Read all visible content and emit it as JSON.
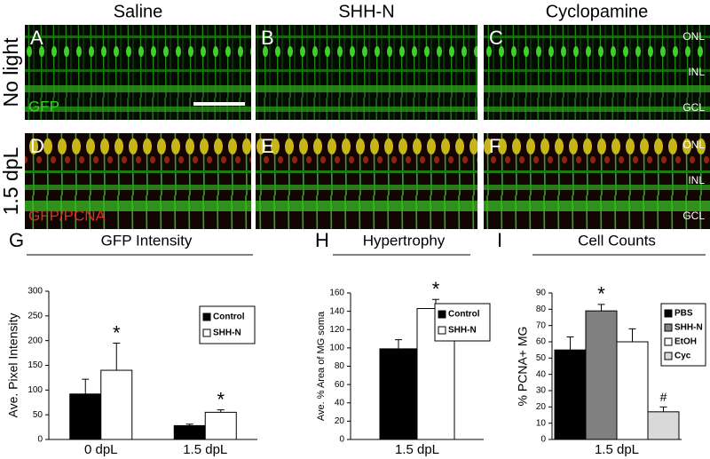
{
  "figure": {
    "columns": [
      "Saline",
      "SHH-N",
      "Cyclopamine"
    ],
    "rows": [
      "No light",
      "1.5 dpL"
    ],
    "panels": [
      {
        "letter": "A",
        "stain": "GFP"
      },
      {
        "letter": "B"
      },
      {
        "letter": "C",
        "layers": [
          "ONL",
          "INL",
          "GCL"
        ]
      },
      {
        "letter": "D",
        "stain": "GFP/PCNA"
      },
      {
        "letter": "E"
      },
      {
        "letter": "F",
        "layers": [
          "ONL",
          "INL",
          "GCL"
        ]
      }
    ]
  },
  "chart_data": [
    {
      "type": "bar",
      "panel": "G",
      "title": "GFP Intensity",
      "y_label": "Ave. Pixel Intensity",
      "categories": [
        "0 dpL",
        "1.5 dpL"
      ],
      "series": [
        {
          "name": "Control",
          "color": "#000000",
          "values": [
            92,
            28
          ],
          "errors": [
            30,
            3
          ]
        },
        {
          "name": "SHH-N",
          "color": "#ffffff",
          "values": [
            140,
            55
          ],
          "errors": [
            55,
            5
          ],
          "marker": "*"
        }
      ],
      "ylim": [
        0,
        300
      ],
      "yticks": [
        0,
        50,
        100,
        150,
        200,
        250,
        300
      ]
    },
    {
      "type": "bar",
      "panel": "H",
      "title": "Hypertrophy",
      "y_label": "Ave. % Area of MG soma",
      "categories": [
        "1.5 dpL"
      ],
      "series": [
        {
          "name": "Control",
          "color": "#000000",
          "values": [
            99
          ],
          "errors": [
            10
          ]
        },
        {
          "name": "SHH-N",
          "color": "#ffffff",
          "values": [
            143
          ],
          "errors": [
            10
          ],
          "marker": "*"
        }
      ],
      "ylim": [
        0,
        160
      ],
      "yticks": [
        0,
        20,
        40,
        60,
        80,
        100,
        120,
        140,
        160
      ]
    },
    {
      "type": "bar",
      "panel": "I",
      "title": "Cell Counts",
      "y_label": "% PCNA+ MG",
      "categories": [
        "1.5 dpL"
      ],
      "series": [
        {
          "name": "PBS",
          "color": "#000000",
          "values": [
            55
          ],
          "errors": [
            8
          ]
        },
        {
          "name": "SHH-N",
          "color": "#808080",
          "values": [
            79
          ],
          "errors": [
            4
          ],
          "marker": "*"
        },
        {
          "name": "EtOH",
          "color": "#ffffff",
          "values": [
            60
          ],
          "errors": [
            8
          ]
        },
        {
          "name": "Cyc",
          "color": "#d9d9d9",
          "values": [
            17
          ],
          "errors": [
            3
          ],
          "marker": "#"
        }
      ],
      "ylim": [
        0,
        90
      ],
      "yticks": [
        0,
        10,
        20,
        30,
        40,
        50,
        60,
        70,
        80,
        90
      ]
    }
  ]
}
